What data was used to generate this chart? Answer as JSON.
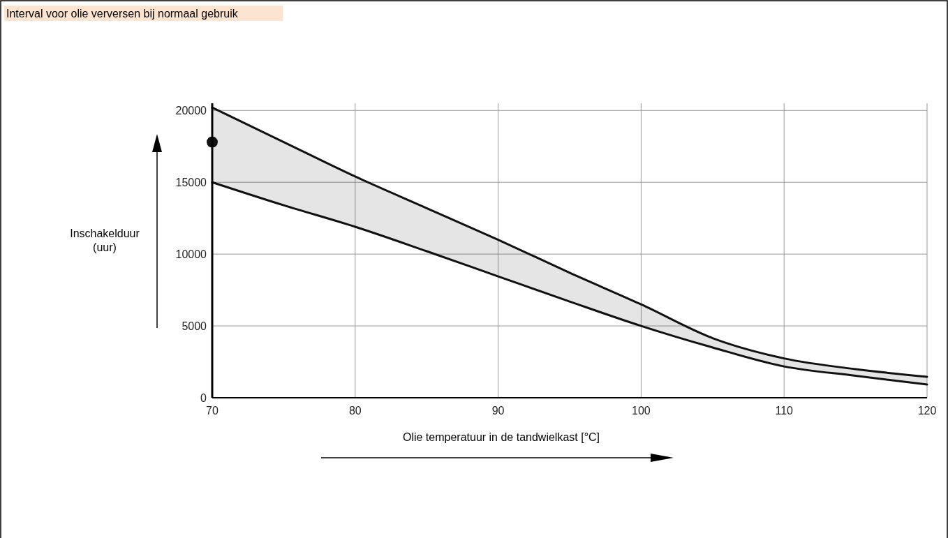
{
  "chart_data": {
    "type": "line",
    "title": "Interval voor olie verversen bij normaal gebruik",
    "xlabel": "Olie temperatuur in de tandwielkast [°C]",
    "ylabel": "Inschakelduur (uur)",
    "x": [
      70,
      75,
      80,
      85,
      90,
      95,
      100,
      105,
      110,
      115,
      120
    ],
    "series": [
      {
        "color": "#111111",
        "values": [
          20200,
          17800,
          15400,
          13200,
          11000,
          8700,
          6500,
          4150,
          2740,
          1990,
          1460
        ],
        "lower": [
          15000,
          13400,
          11900,
          10200,
          8450,
          6700,
          5000,
          3500,
          2180,
          1530,
          920
        ],
        "upper": [
          20200,
          17800,
          15400,
          13200,
          11000,
          8700,
          6500,
          4150,
          2740,
          1990,
          1460
        ]
      },
      {
        "color": "#111111",
        "values": [
          15000,
          13400,
          11900,
          10200,
          8450,
          6700,
          5000,
          3500,
          2180,
          1530,
          920
        ]
      },
      {
        "type": "scatter",
        "color": "#111111",
        "x": [
          70
        ],
        "values": [
          17800
        ],
        "marker": "circle"
      }
    ],
    "xlim": [
      70,
      120
    ],
    "xticks": [
      70,
      80,
      90,
      100,
      110,
      120
    ],
    "ylim": [
      0,
      20500
    ],
    "yticks": [
      0,
      5000,
      10000,
      15000,
      20000
    ],
    "grid": true,
    "marker": "none",
    "line_style": "solid"
  }
}
